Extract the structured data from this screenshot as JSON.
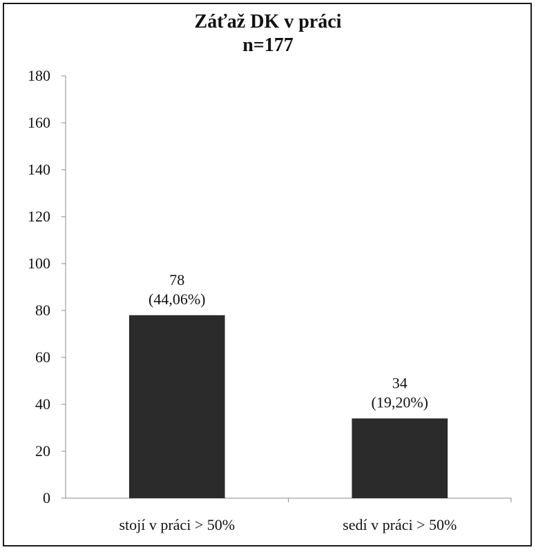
{
  "chart_data": {
    "type": "bar",
    "title": [
      "Záťaž DK v práci",
      "n=177"
    ],
    "xlabel": "",
    "ylabel": "",
    "categories": [
      "stojí v práci > 50%",
      "sedí v práci > 50%"
    ],
    "values": [
      78,
      34
    ],
    "data_labels": [
      [
        "78",
        "(44,06%)"
      ],
      [
        "34",
        "(19,20%)"
      ]
    ],
    "ylim": [
      0,
      180
    ],
    "yticks": [
      0,
      20,
      40,
      60,
      80,
      100,
      120,
      140,
      160,
      180
    ],
    "grid": false,
    "legend": "none",
    "bar_color": "#2b2b2b"
  }
}
